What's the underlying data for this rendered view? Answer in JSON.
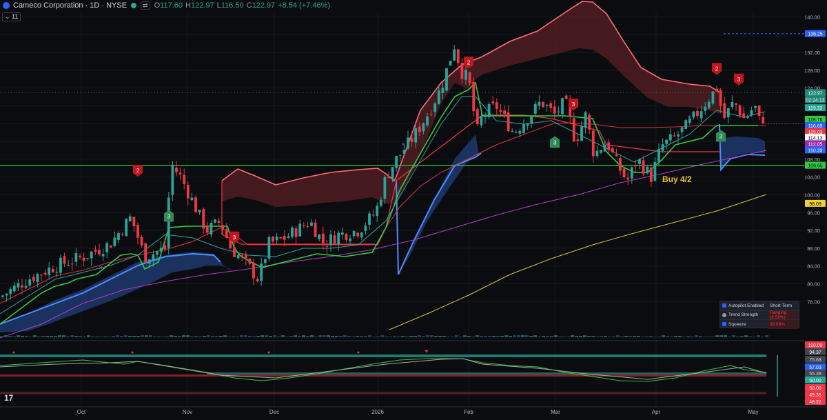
{
  "header": {
    "symbol": "Cameco Corporation · 1D · NYSE",
    "ctl1": "⇄",
    "open_label": "O",
    "open": "117.60",
    "high_label": "H",
    "high": "122.97",
    "low_label": "L",
    "low": "116.50",
    "close_label": "C",
    "close": "122.97",
    "change": "+8.54 (+7.46%)",
    "indicator_count": "11"
  },
  "annotation": "Buy 4/2",
  "price_axis": {
    "ticks": [
      "140.00",
      "136.00",
      "132.00",
      "128.00",
      "124.00",
      "120.00",
      "116.00",
      "112.00",
      "108.00",
      "104.00",
      "100.00",
      "96.00",
      "92.00",
      "88.00",
      "84.00",
      "80.00",
      "76.00"
    ],
    "tick_values": [
      140,
      136,
      132,
      128,
      124,
      120,
      116,
      112,
      108,
      104,
      100,
      96,
      92,
      88,
      84,
      80,
      76
    ],
    "badges": [
      {
        "text": "136.25",
        "value": 136.25,
        "color": "#2962ff",
        "fg": "#ffffff"
      },
      {
        "text": "122.97",
        "value": 122.97,
        "color": "#1e8a7a",
        "fg": "#ffffff"
      },
      {
        "text": "02:24:13",
        "value": 121.4,
        "color": "#1e8a7a",
        "fg": "#ffffff"
      },
      {
        "text": "119.32",
        "value": 119.6,
        "color": "#26a69a",
        "fg": "#ffffff"
      },
      {
        "text": "116.76",
        "value": 117.0,
        "color": "#2ecc40",
        "fg": "#000000"
      },
      {
        "text": "116.69",
        "value": 115.6,
        "color": "#2962ff",
        "fg": "#ffffff"
      },
      {
        "text": "115.03",
        "value": 114.2,
        "color": "#f23645",
        "fg": "#ffffff"
      },
      {
        "text": "114.13",
        "value": 112.9,
        "color": "#ffffff",
        "fg": "#000000"
      },
      {
        "text": "112.05",
        "value": 111.5,
        "color": "#9c27b0",
        "fg": "#ffffff"
      },
      {
        "text": "110.39",
        "value": 110.1,
        "color": "#2962ff",
        "fg": "#ffffff"
      },
      {
        "text": "106.65",
        "value": 106.65,
        "color": "#2ecc40",
        "fg": "#000000"
      },
      {
        "text": "98.09",
        "value": 98.09,
        "color": "#f0d030",
        "fg": "#000000"
      }
    ]
  },
  "osc_axis": {
    "badges": [
      {
        "text": "110.00",
        "y": 500,
        "color": "#f23645",
        "fg": "#ffffff"
      },
      {
        "text": "94.37",
        "y": 510,
        "color": "#434651",
        "fg": "#ffffff"
      },
      {
        "text": "75.68",
        "y": 521,
        "color": "#434651",
        "fg": "#d1d4dc"
      },
      {
        "text": "57.03",
        "y": 532,
        "color": "#2962ff",
        "fg": "#ffffff"
      },
      {
        "text": "55.38",
        "y": 541,
        "color": "#434651",
        "fg": "#d1d4dc"
      },
      {
        "text": "50.00",
        "y": 551,
        "color": "#26a69a",
        "fg": "#ffffff"
      },
      {
        "text": "50.00",
        "y": 562,
        "color": "#f23645",
        "fg": "#ffffff"
      },
      {
        "text": "49.35",
        "y": 572,
        "color": "#f23645",
        "fg": "#ffffff"
      },
      {
        "text": "48.22",
        "y": 582,
        "color": "#f23645",
        "fg": "#ffffff"
      }
    ]
  },
  "time_axis": [
    "Oct",
    "Nov",
    "Dec",
    "2026",
    "Feb",
    "Mar",
    "Apr",
    "May"
  ],
  "panel": {
    "rows": [
      {
        "key": "Autopilot Enabled",
        "value": "Short-Term",
        "color": "#d1d4dc"
      },
      {
        "key": "Trend Strength",
        "value": "Ranging (3.59%)",
        "color": "#f23645"
      },
      {
        "key": "Squeeze",
        "value": "38.89%",
        "color": "#f23645"
      }
    ]
  },
  "signals": [
    {
      "label": "2",
      "type": "sell",
      "x": 200,
      "p": 105.5
    },
    {
      "label": "3",
      "type": "buy",
      "x": 245,
      "p": 95.2
    },
    {
      "label": "3",
      "type": "sell",
      "x": 340,
      "p": 90.5
    },
    {
      "label": "2",
      "type": "sell",
      "x": 680,
      "p": 129.8
    },
    {
      "label": "3",
      "type": "buy",
      "x": 805,
      "p": 111.8
    },
    {
      "label": "3",
      "type": "sell",
      "x": 832,
      "p": 120.4
    },
    {
      "label": "2",
      "type": "sell",
      "x": 1040,
      "p": 128.4
    },
    {
      "label": "3",
      "type": "sell",
      "x": 1072,
      "p": 126.0
    },
    {
      "label": "3",
      "type": "buy",
      "x": 1046,
      "p": 113.2
    }
  ],
  "colors": {
    "up": "#26a69a",
    "down": "#f23645",
    "bg": "#0b0c0f"
  },
  "tvlogo": "17"
}
